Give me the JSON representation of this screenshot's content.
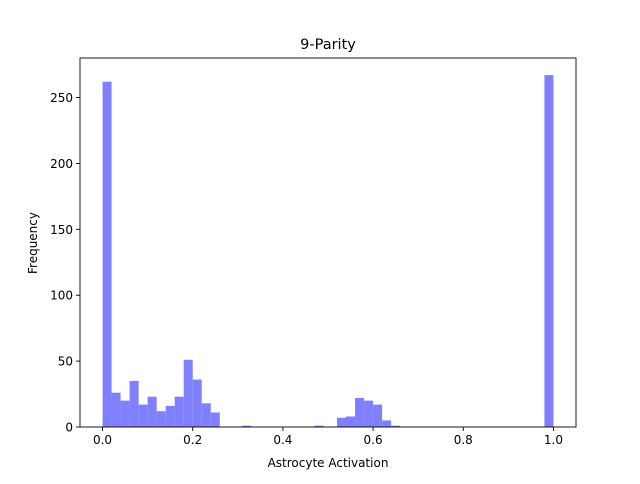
{
  "chart_data": {
    "type": "bar",
    "title": "9-Parity",
    "xlabel": "Astrocyte Activation",
    "ylabel": "Frequency",
    "bin_width": 0.02,
    "xlim": [
      -0.05,
      1.05
    ],
    "ylim": [
      0,
      280
    ],
    "x_ticks": [
      0.0,
      0.2,
      0.4,
      0.6,
      0.8,
      1.0
    ],
    "x_tick_labels": [
      "0.0",
      "0.2",
      "0.4",
      "0.6",
      "0.8",
      "1.0"
    ],
    "y_ticks": [
      0,
      50,
      100,
      150,
      200,
      250
    ],
    "y_tick_labels": [
      "0",
      "50",
      "100",
      "150",
      "200",
      "250"
    ],
    "bar_color": "#8080ff",
    "bins": [
      {
        "x": 0.0,
        "count": 262
      },
      {
        "x": 0.02,
        "count": 26
      },
      {
        "x": 0.04,
        "count": 20
      },
      {
        "x": 0.06,
        "count": 35
      },
      {
        "x": 0.08,
        "count": 17
      },
      {
        "x": 0.1,
        "count": 23
      },
      {
        "x": 0.12,
        "count": 12
      },
      {
        "x": 0.14,
        "count": 16
      },
      {
        "x": 0.16,
        "count": 23
      },
      {
        "x": 0.18,
        "count": 51
      },
      {
        "x": 0.2,
        "count": 36
      },
      {
        "x": 0.22,
        "count": 18
      },
      {
        "x": 0.24,
        "count": 11
      },
      {
        "x": 0.31,
        "count": 1
      },
      {
        "x": 0.47,
        "count": 1
      },
      {
        "x": 0.52,
        "count": 7
      },
      {
        "x": 0.54,
        "count": 8
      },
      {
        "x": 0.56,
        "count": 22
      },
      {
        "x": 0.58,
        "count": 20
      },
      {
        "x": 0.6,
        "count": 17
      },
      {
        "x": 0.62,
        "count": 5
      },
      {
        "x": 0.64,
        "count": 1
      },
      {
        "x": 0.98,
        "count": 267
      }
    ]
  }
}
